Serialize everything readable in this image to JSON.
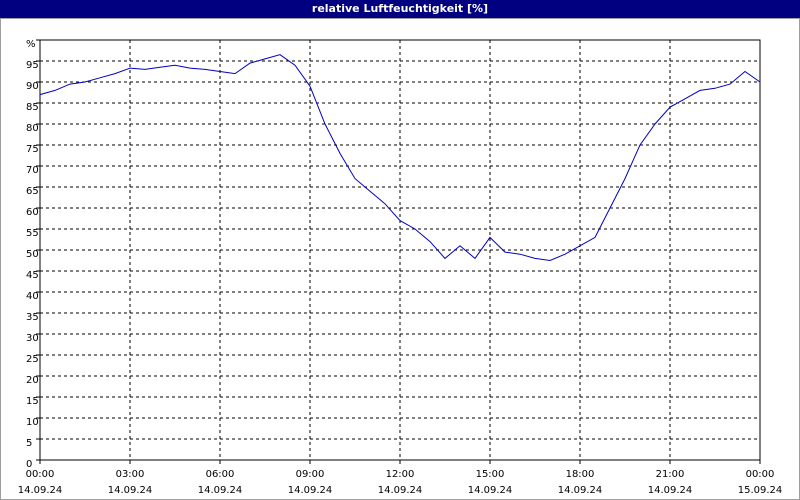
{
  "chart_data": {
    "type": "line",
    "title": "relative Luftfeuchtigkeit [%]",
    "x": [
      0,
      0.5,
      1,
      1.5,
      2,
      2.5,
      3,
      3.5,
      4,
      4.5,
      5,
      5.5,
      6,
      6.5,
      7,
      7.5,
      8,
      8.5,
      9,
      9.5,
      10,
      10.5,
      11,
      11.5,
      12,
      12.5,
      13,
      13.5,
      14,
      14.5,
      15,
      15.5,
      16,
      16.5,
      17,
      17.5,
      18,
      18.5,
      19,
      19.5,
      20,
      20.5,
      21,
      21.5,
      22,
      22.5,
      23,
      23.5,
      24
    ],
    "series": [
      {
        "name": "relative Luftfeuchtigkeit",
        "color": "#0000c0",
        "values": [
          87,
          88,
          89.5,
          90,
          91,
          92,
          93.3,
          93,
          93.5,
          94,
          93.3,
          93,
          92.5,
          92,
          94.5,
          95.5,
          96.5,
          94,
          89,
          80,
          73,
          67,
          64,
          61,
          57,
          55,
          52,
          48,
          51,
          48,
          53,
          49.5,
          49,
          48,
          47.5,
          49,
          51,
          53,
          60,
          67,
          75,
          80,
          84,
          86,
          88,
          88.5,
          89.5,
          92.5,
          90
        ]
      }
    ],
    "xlim": [
      0,
      24
    ],
    "xticks": [
      {
        "value": 0,
        "label": "00:00",
        "date": "14.09.24"
      },
      {
        "value": 3,
        "label": "03:00",
        "date": "14.09.24"
      },
      {
        "value": 6,
        "label": "06:00",
        "date": "14.09.24"
      },
      {
        "value": 9,
        "label": "09:00",
        "date": "14.09.24"
      },
      {
        "value": 12,
        "label": "12:00",
        "date": "14.09.24"
      },
      {
        "value": 15,
        "label": "15:00",
        "date": "14.09.24"
      },
      {
        "value": 18,
        "label": "18:00",
        "date": "14.09.24"
      },
      {
        "value": 21,
        "label": "21:00",
        "date": "14.09.24"
      },
      {
        "value": 24,
        "label": "00:00",
        "date": "15.09.24"
      }
    ],
    "ylim": [
      0,
      100
    ],
    "yticks": [
      0,
      5,
      10,
      15,
      20,
      25,
      30,
      35,
      40,
      45,
      50,
      55,
      60,
      65,
      70,
      75,
      80,
      85,
      90,
      95,
      {
        "value": 100,
        "label": "%"
      }
    ],
    "grid": true
  }
}
